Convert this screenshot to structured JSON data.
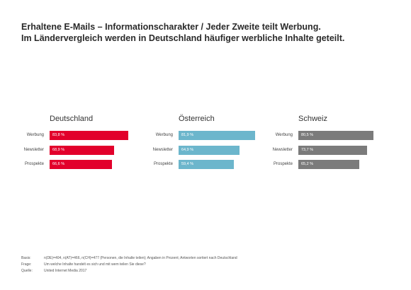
{
  "title_lines": [
    "Erhaltene E-Mails – Informationscharakter / Jeder Zweite teilt Werbung.",
    "Im Ländervergleich werden in Deutschland häufiger werbliche Inhalte geteilt."
  ],
  "colors": {
    "de": "#e2002b",
    "at": "#6cb6cc",
    "ch": "#7b7b7b"
  },
  "chart_data": [
    {
      "type": "bar",
      "orientation": "horizontal",
      "title": "Deutschland",
      "categories": [
        "Werbung",
        "Newsletter",
        "Prospekte"
      ],
      "values": [
        83.8,
        68.9,
        66.6
      ],
      "value_labels": [
        "83,8 %",
        "68,9 %",
        "66,6 %"
      ],
      "xlim": [
        0,
        100
      ]
    },
    {
      "type": "bar",
      "orientation": "horizontal",
      "title": "Österreich",
      "categories": [
        "Werbung",
        "Newsletter",
        "Prospekte"
      ],
      "values": [
        81.9,
        64.9,
        59.4
      ],
      "value_labels": [
        "81,9 %",
        "64,9 %",
        "59,4 %"
      ],
      "xlim": [
        0,
        100
      ]
    },
    {
      "type": "bar",
      "orientation": "horizontal",
      "title": "Schweiz",
      "categories": [
        "Werbung",
        "Newsletter",
        "Prospekte"
      ],
      "values": [
        80.5,
        73.7,
        65.2
      ],
      "value_labels": [
        "80,5 %",
        "73,7 %",
        "65,2 %"
      ],
      "xlim": [
        0,
        100
      ]
    }
  ],
  "footer": {
    "basis_label": "Basis:",
    "basis": "n(DE)=404, n(AT)=466, n(CH)=477 (Personen, die Inhalte teilen); Angaben in Prozent; Antworten sortiert nach Deutschland",
    "frage_label": "Frage:",
    "frage": "Um welche Inhalte handelt es sich und mit wem teilen Sie diese?",
    "quelle_label": "Quelle:",
    "quelle": "United Internet Media 2017"
  }
}
